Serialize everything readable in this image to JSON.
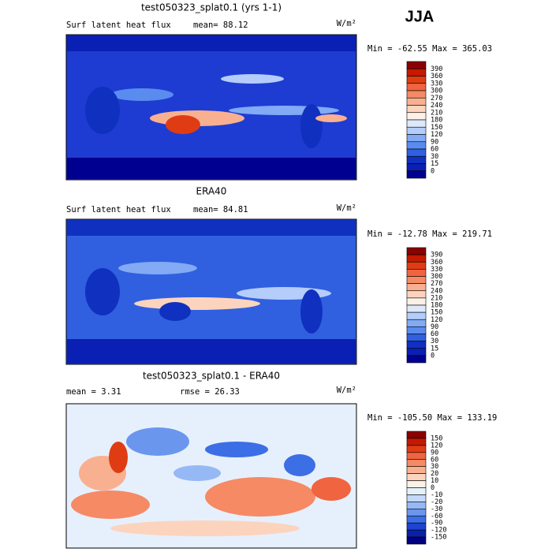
{
  "header": {
    "season": "JJA"
  },
  "panels": [
    {
      "title": "test050323_splat0.1 (yrs 1-1)",
      "variable": "Surf latent heat flux",
      "stat_1": "mean=  88.12",
      "units": "W/m²",
      "min_max": "Min = -62.55 Max = 365.03",
      "colorbar": {
        "levels": [
          390,
          360,
          330,
          300,
          270,
          240,
          210,
          180,
          150,
          120,
          90,
          60,
          30,
          15,
          0
        ],
        "colors": [
          "#8b0000",
          "#c41a00",
          "#e03c14",
          "#f06440",
          "#f58a65",
          "#f9b091",
          "#fcd4be",
          "#fdf0e6",
          "#dce8fc",
          "#b4cdfa",
          "#82aaf5",
          "#5a8cf0",
          "#3060e0",
          "#1030c0",
          "#0a1fb4",
          "#000090"
        ]
      }
    },
    {
      "title": "ERA40",
      "variable": "Surf latent heat flux",
      "stat_1": "mean=  84.81",
      "units": "W/m²",
      "min_max": "Min = -12.78 Max = 219.71",
      "colorbar": {
        "levels": [
          390,
          360,
          330,
          300,
          270,
          240,
          210,
          180,
          150,
          120,
          90,
          60,
          30,
          15,
          0
        ],
        "colors": [
          "#8b0000",
          "#c41a00",
          "#e03c14",
          "#f06440",
          "#f58a65",
          "#f9b091",
          "#fcd4be",
          "#fdf0e6",
          "#dce8fc",
          "#b4cdfa",
          "#82aaf5",
          "#5a8cf0",
          "#3060e0",
          "#1030c0",
          "#0a1fb4",
          "#000090"
        ]
      }
    },
    {
      "title": "test050323_splat0.1 - ERA40",
      "stat_1": "mean =   3.31",
      "stat_2": "rmse =  26.33",
      "units": "W/m²",
      "min_max": "Min = -105.50 Max = 133.19",
      "colorbar": {
        "levels": [
          150,
          120,
          90,
          60,
          30,
          20,
          10,
          0,
          -10,
          -20,
          -30,
          -60,
          -90,
          -120,
          -150
        ],
        "colors": [
          "#8b0000",
          "#c41a00",
          "#e03c14",
          "#f06440",
          "#f58a65",
          "#f9b091",
          "#fcd4be",
          "#fdf0e6",
          "#e6f0fc",
          "#c4d8fa",
          "#96b9f5",
          "#6a96ee",
          "#3c6ee6",
          "#1e44d0",
          "#0a20a8",
          "#000080"
        ]
      }
    }
  ]
}
